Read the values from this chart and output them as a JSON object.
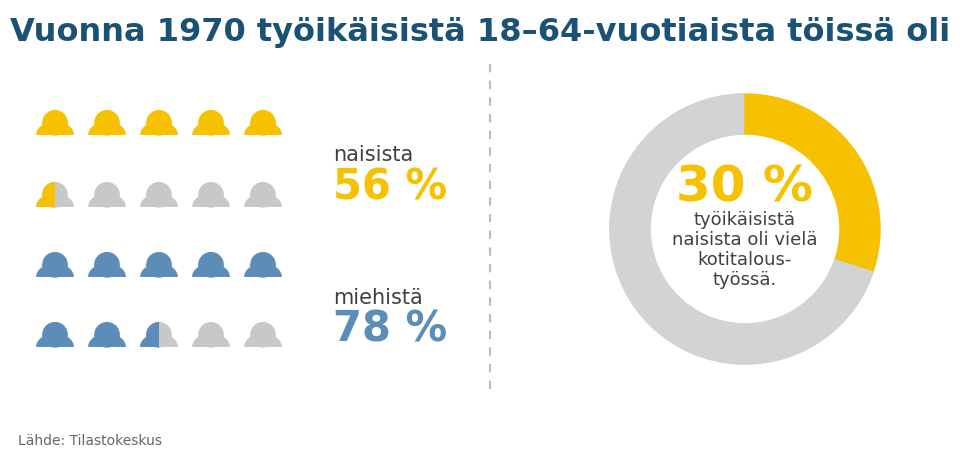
{
  "title": "Vuonna 1970 työikäisistä 18–64-vuotiaista töissä oli",
  "title_color": "#1a5276",
  "title_fontsize": 23,
  "women_pct": 56,
  "men_pct": 78,
  "donut_pct": 30,
  "women_label": "naisista",
  "men_label": "miehistä",
  "women_pct_str": "56 %",
  "men_pct_str": "78 %",
  "donut_pct_str": "30 %",
  "donut_text1": "työikäisistä",
  "donut_text2": "naisista oli vielä",
  "donut_text3": "kotitalous-",
  "donut_text4": "työssä.",
  "yellow_color": "#F5C100",
  "blue_color": "#5B8DB8",
  "gray_color": "#C8C8C8",
  "dark_blue": "#1a5276",
  "source_text": "Lähde: Tilastokeskus",
  "background_color": "#ffffff",
  "donut_yellow": "#F5C100",
  "donut_gray": "#D3D3D3",
  "text_color": "#404040"
}
